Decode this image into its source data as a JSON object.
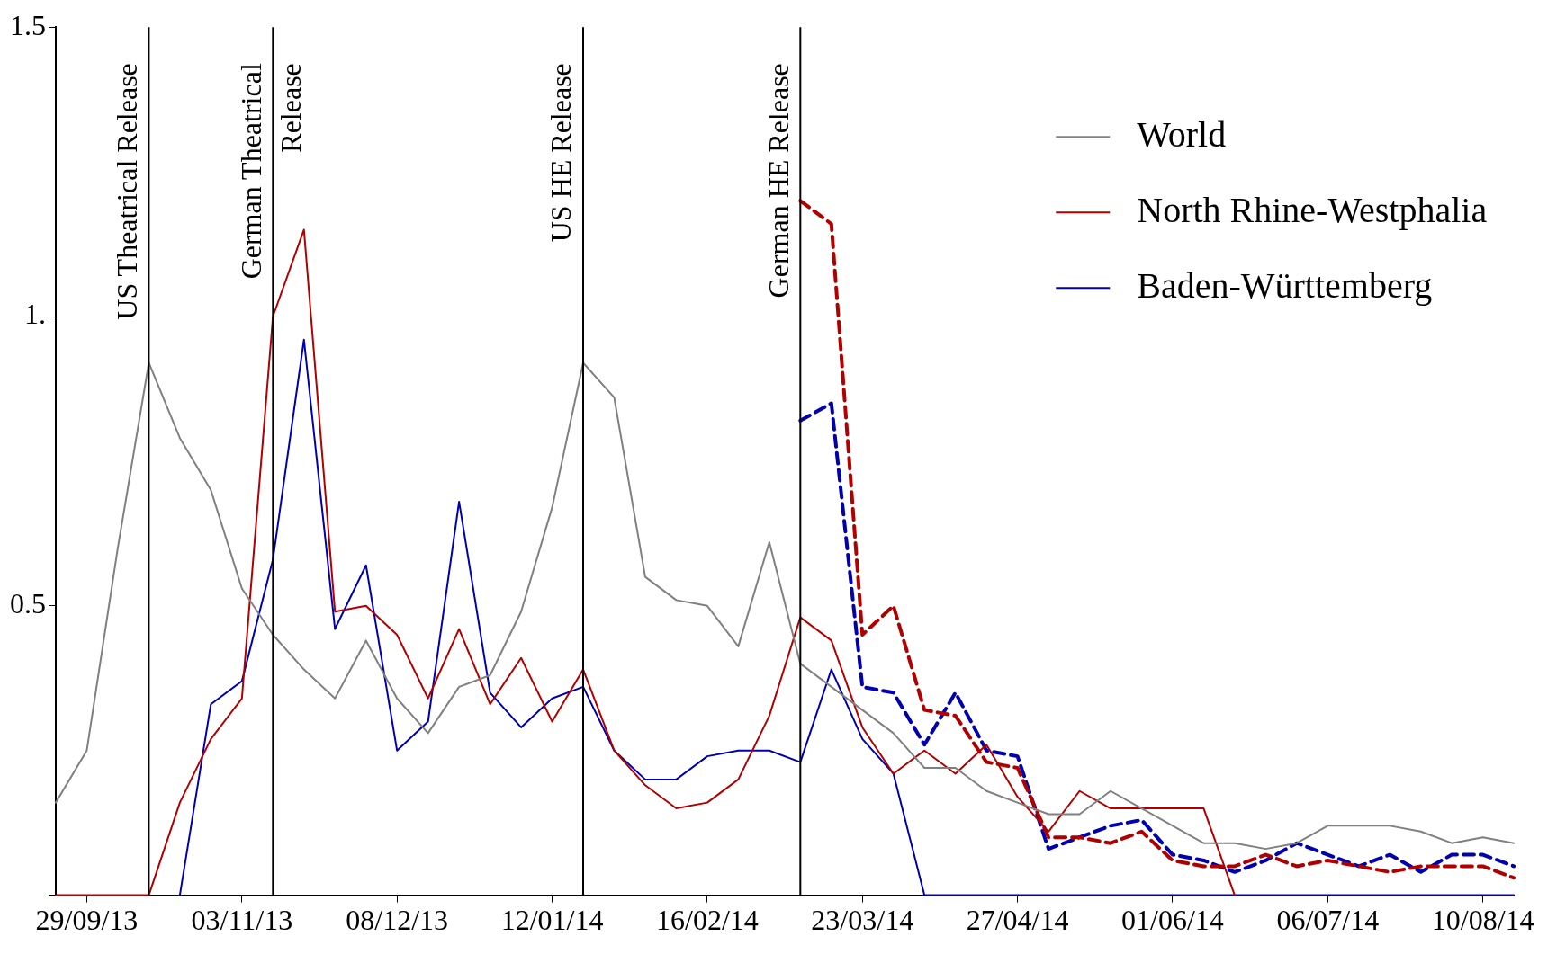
{
  "chart_data": {
    "type": "line",
    "x": [
      "2013-09-22",
      "2013-09-29",
      "2013-10-06",
      "2013-10-13",
      "2013-10-20",
      "2013-10-27",
      "2013-11-03",
      "2013-11-10",
      "2013-11-17",
      "2013-11-24",
      "2013-12-01",
      "2013-12-08",
      "2013-12-15",
      "2013-12-22",
      "2013-12-29",
      "2014-01-05",
      "2014-01-12",
      "2014-01-19",
      "2014-01-26",
      "2014-02-02",
      "2014-02-09",
      "2014-02-16",
      "2014-02-23",
      "2014-03-02",
      "2014-03-09",
      "2014-03-16",
      "2014-03-23",
      "2014-03-30",
      "2014-04-06",
      "2014-04-13",
      "2014-04-20",
      "2014-04-27",
      "2014-05-04",
      "2014-05-11",
      "2014-05-18",
      "2014-05-25",
      "2014-06-01",
      "2014-06-08",
      "2014-06-15",
      "2014-06-22",
      "2014-06-29",
      "2014-07-06",
      "2014-07-13",
      "2014-07-20",
      "2014-07-27",
      "2014-08-03",
      "2014-08-10",
      "2014-08-17"
    ],
    "series": [
      {
        "name": "World",
        "color": "#808080",
        "line_style": "solid",
        "values": [
          0.16,
          0.25,
          0.6,
          0.92,
          0.79,
          0.7,
          0.53,
          0.45,
          0.39,
          0.34,
          0.44,
          0.34,
          0.28,
          0.36,
          0.38,
          0.49,
          0.67,
          0.92,
          0.86,
          0.55,
          0.51,
          0.5,
          0.43,
          0.61,
          0.4,
          0.36,
          0.32,
          0.28,
          0.22,
          0.22,
          0.18,
          0.16,
          0.14,
          0.14,
          0.18,
          0.15,
          0.12,
          0.09,
          0.09,
          0.08,
          0.09,
          0.12,
          0.12,
          0.12,
          0.11,
          0.09,
          0.1,
          0.09
        ]
      },
      {
        "name": "North Rhine-Westphalia",
        "color": "#b00000",
        "line_style": "solid",
        "values": [
          0,
          0,
          0,
          0,
          0.16,
          0.27,
          0.34,
          1.0,
          1.15,
          0.49,
          0.5,
          0.45,
          0.34,
          0.46,
          0.33,
          0.41,
          0.3,
          0.39,
          0.25,
          0.19,
          0.15,
          0.16,
          0.2,
          0.31,
          0.48,
          0.44,
          0.29,
          0.21,
          0.25,
          0.21,
          0.26,
          0.17,
          0.11,
          0.18,
          0.15,
          0.15,
          0.15,
          0.15,
          0,
          null,
          null,
          null,
          null,
          null,
          null,
          null,
          null,
          null
        ]
      },
      {
        "name": "Baden-Württemberg",
        "color": "#0000b0",
        "line_style": "solid",
        "values": [
          null,
          null,
          null,
          null,
          0,
          0.33,
          0.37,
          0.58,
          0.96,
          0.46,
          0.57,
          0.25,
          0.3,
          0.68,
          0.35,
          0.29,
          0.34,
          0.36,
          0.25,
          0.2,
          0.2,
          0.24,
          0.25,
          0.25,
          0.23,
          0.39,
          0.27,
          0.21,
          0,
          0,
          0,
          0,
          0,
          0,
          0,
          0,
          0,
          0,
          0,
          0,
          0,
          0,
          0,
          0,
          0,
          0,
          0,
          0
        ]
      },
      {
        "color": "#b00000",
        "line_style": "dashed",
        "values": [
          null,
          null,
          null,
          null,
          null,
          null,
          null,
          null,
          null,
          null,
          null,
          null,
          null,
          null,
          null,
          null,
          null,
          null,
          null,
          null,
          null,
          null,
          null,
          null,
          1.2,
          1.16,
          0.45,
          0.5,
          0.32,
          0.31,
          0.23,
          0.22,
          0.1,
          0.1,
          0.09,
          0.11,
          0.06,
          0.05,
          0.05,
          0.07,
          0.05,
          0.06,
          0.05,
          0.04,
          0.05,
          0.05,
          0.05,
          0.03
        ]
      },
      {
        "color": "#0000b0",
        "line_style": "dashed",
        "values": [
          null,
          null,
          null,
          null,
          null,
          null,
          null,
          null,
          null,
          null,
          null,
          null,
          null,
          null,
          null,
          null,
          null,
          null,
          null,
          null,
          null,
          null,
          null,
          null,
          0.82,
          0.85,
          0.36,
          0.35,
          0.26,
          0.35,
          0.25,
          0.24,
          0.08,
          0.1,
          0.12,
          0.13,
          0.07,
          0.06,
          0.04,
          0.06,
          0.09,
          0.07,
          0.05,
          0.07,
          0.04,
          0.07,
          0.07,
          0.05
        ]
      }
    ],
    "xlim": [
      "2013-09-22",
      "2014-08-17"
    ],
    "xticks": [
      {
        "value": "2013-09-29",
        "label": "29/09/13"
      },
      {
        "value": "2013-11-03",
        "label": "03/11/13"
      },
      {
        "value": "2013-12-08",
        "label": "08/12/13"
      },
      {
        "value": "2014-01-12",
        "label": "12/01/14"
      },
      {
        "value": "2014-02-16",
        "label": "16/02/14"
      },
      {
        "value": "2014-03-23",
        "label": "23/03/14"
      },
      {
        "value": "2014-04-27",
        "label": "27/04/14"
      },
      {
        "value": "2014-06-01",
        "label": "01/06/14"
      },
      {
        "value": "2014-07-06",
        "label": "06/07/14"
      },
      {
        "value": "2014-08-10",
        "label": "10/08/14"
      }
    ],
    "ylim": [
      0,
      1.5
    ],
    "yticks": [
      {
        "value": 0,
        "label": null
      },
      {
        "value": 0.5,
        "label": "0.5"
      },
      {
        "value": 1,
        "label": "1."
      },
      {
        "value": 1.5,
        "label": "1.5"
      }
    ],
    "ref_lines": [
      {
        "axis": "x",
        "value": "2013-10-13",
        "label": "US Theatrical Release",
        "color": "#000000"
      },
      {
        "axis": "x",
        "value": "2013-11-10",
        "label": "German Theatrical Release",
        "color": "#000000"
      },
      {
        "axis": "x",
        "value": "2014-01-19",
        "label": "US HE Release",
        "color": "#000000"
      },
      {
        "axis": "x",
        "value": "2014-03-09",
        "label": "German HE Release",
        "color": "#000000"
      }
    ],
    "grid": false,
    "legend": "top right",
    "marker": "none"
  }
}
